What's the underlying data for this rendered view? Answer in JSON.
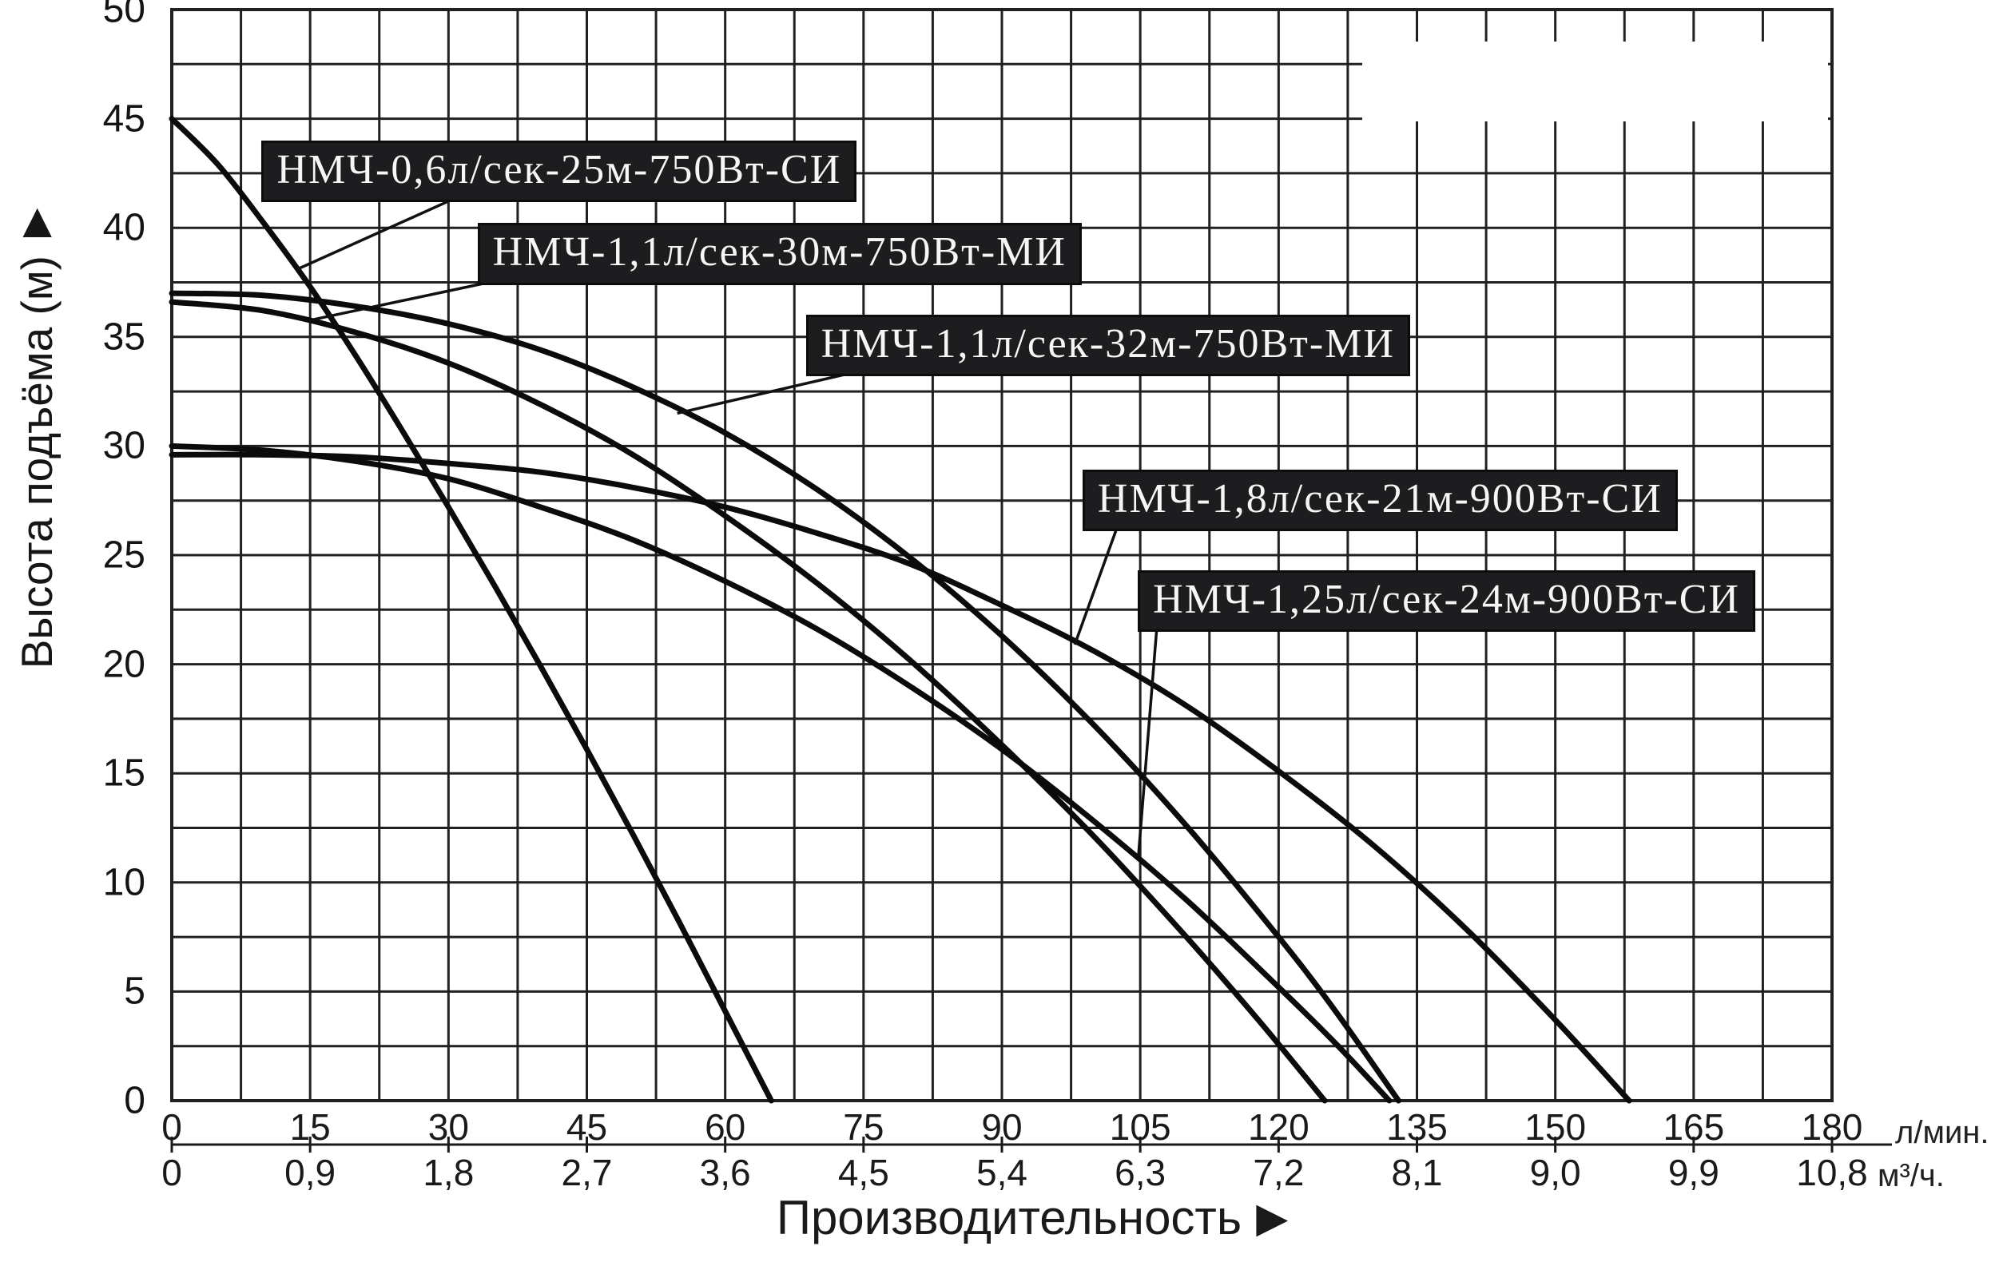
{
  "figure": {
    "background_color": "#ffffff",
    "grid_color": "#202020",
    "curve_color": "#0b0b0b",
    "label_box_bg": "#1d1d1f",
    "label_box_text": "#f6f6f6"
  },
  "chart_data": {
    "type": "line",
    "xlabel": "Производительность",
    "xlabel_arrow": "▶",
    "ylabel": "Высота подъёма (м)",
    "ylabel_arrow": "▲",
    "xlim": [
      0,
      180
    ],
    "ylim": [
      0,
      50
    ],
    "x_major_step": 15,
    "x_minor_step": 7.5,
    "y_major_step": 5,
    "y_minor_step": 2.5,
    "grid": "on",
    "legend_position": "inline-boxed-labels-with-leader-lines",
    "x_ticks_primary": [
      "0",
      "15",
      "30",
      "45",
      "60",
      "75",
      "90",
      "105",
      "120",
      "135",
      "150",
      "165",
      "180"
    ],
    "x_unit_primary": "л/мин.",
    "x_ticks_secondary": [
      "0",
      "0,9",
      "1,8",
      "2,7",
      "3,6",
      "4,5",
      "5,4",
      "6,3",
      "7,2",
      "8,1",
      "9,0",
      "9,9",
      "10,8"
    ],
    "x_unit_secondary": "м³/ч.",
    "y_ticks": [
      "50",
      "45",
      "40",
      "35",
      "30",
      "25",
      "20",
      "15",
      "10",
      "5",
      "0"
    ],
    "series": [
      {
        "name": "НМЧ-0,6л/сек-25м-750Вт-СИ",
        "label_box": {
          "q": 10,
          "h": 43.9
        },
        "leader": {
          "from": {
            "q": 29.9,
            "h": 41.2
          },
          "to": {
            "q": 13.6,
            "h": 38.1
          }
        },
        "points": [
          [
            0,
            45
          ],
          [
            5,
            42.9
          ],
          [
            10,
            40.2
          ],
          [
            15,
            37.3
          ],
          [
            20,
            34.1
          ],
          [
            25,
            30.7
          ],
          [
            30,
            27.2
          ],
          [
            35,
            23.6
          ],
          [
            40,
            19.9
          ],
          [
            45,
            16.1
          ],
          [
            50,
            12.2
          ],
          [
            55,
            8.2
          ],
          [
            60,
            4.1
          ],
          [
            65,
            0
          ]
        ]
      },
      {
        "name": "НМЧ-1,1л/сек-30м-750Вт-МИ",
        "label_box": {
          "q": 33.4,
          "h": 40.1
        },
        "leader": {
          "from": {
            "q": 35.5,
            "h": 37.6
          },
          "to": {
            "q": 15.4,
            "h": 35.8
          }
        },
        "points": [
          [
            0,
            36.6
          ],
          [
            10,
            36.2
          ],
          [
            20,
            35.2
          ],
          [
            30,
            33.8
          ],
          [
            40,
            31.9
          ],
          [
            50,
            29.6
          ],
          [
            60,
            26.8
          ],
          [
            70,
            23.7
          ],
          [
            80,
            20.2
          ],
          [
            90,
            16.3
          ],
          [
            100,
            12.1
          ],
          [
            110,
            7.5
          ],
          [
            118,
            3.6
          ],
          [
            125,
            0
          ]
        ]
      },
      {
        "name": "НМЧ-1,1л/сек-32м-750Вт-МИ",
        "label_box": {
          "q": 69,
          "h": 35.9
        },
        "leader": {
          "from": {
            "q": 73.2,
            "h": 33.3
          },
          "to": {
            "q": 54.8,
            "h": 31.5
          }
        },
        "points": [
          [
            0,
            37
          ],
          [
            10,
            36.9
          ],
          [
            20,
            36.4
          ],
          [
            30,
            35.6
          ],
          [
            40,
            34.4
          ],
          [
            50,
            32.7
          ],
          [
            60,
            30.6
          ],
          [
            70,
            28
          ],
          [
            80,
            24.9
          ],
          [
            90,
            21.3
          ],
          [
            100,
            17.2
          ],
          [
            110,
            12.6
          ],
          [
            120,
            7.5
          ],
          [
            126,
            4.2
          ],
          [
            133,
            0
          ]
        ]
      },
      {
        "name": "НМЧ-1,8л/сек-21м-900Вт-СИ",
        "label_box": {
          "q": 99,
          "h": 28.8
        },
        "leader": {
          "from": {
            "q": 102.6,
            "h": 26.4
          },
          "to": {
            "q": 97.9,
            "h": 20.9
          }
        },
        "points": [
          [
            0,
            29.6
          ],
          [
            10,
            29.6
          ],
          [
            20,
            29.5
          ],
          [
            30,
            29.2
          ],
          [
            40,
            28.8
          ],
          [
            50,
            28.1
          ],
          [
            60,
            27.2
          ],
          [
            70,
            26
          ],
          [
            80,
            24.6
          ],
          [
            90,
            22.7
          ],
          [
            100,
            20.6
          ],
          [
            110,
            18.1
          ],
          [
            120,
            15.1
          ],
          [
            130,
            11.8
          ],
          [
            140,
            8
          ],
          [
            150,
            3.7
          ],
          [
            158,
            0
          ]
        ]
      },
      {
        "name": "НМЧ-1,25л/сек-24м-900Вт-СИ",
        "label_box": {
          "q": 105,
          "h": 24.2
        },
        "leader": {
          "from": {
            "q": 106.8,
            "h": 21.7
          },
          "to": {
            "q": 104.8,
            "h": 11.2
          }
        },
        "points": [
          [
            0,
            30
          ],
          [
            10,
            29.8
          ],
          [
            20,
            29.3
          ],
          [
            30,
            28.5
          ],
          [
            40,
            27.2
          ],
          [
            50,
            25.7
          ],
          [
            60,
            23.8
          ],
          [
            70,
            21.6
          ],
          [
            80,
            19
          ],
          [
            90,
            16.1
          ],
          [
            100,
            12.8
          ],
          [
            110,
            9.2
          ],
          [
            120,
            5.2
          ],
          [
            126,
            2.7
          ],
          [
            132,
            0
          ]
        ]
      }
    ]
  }
}
